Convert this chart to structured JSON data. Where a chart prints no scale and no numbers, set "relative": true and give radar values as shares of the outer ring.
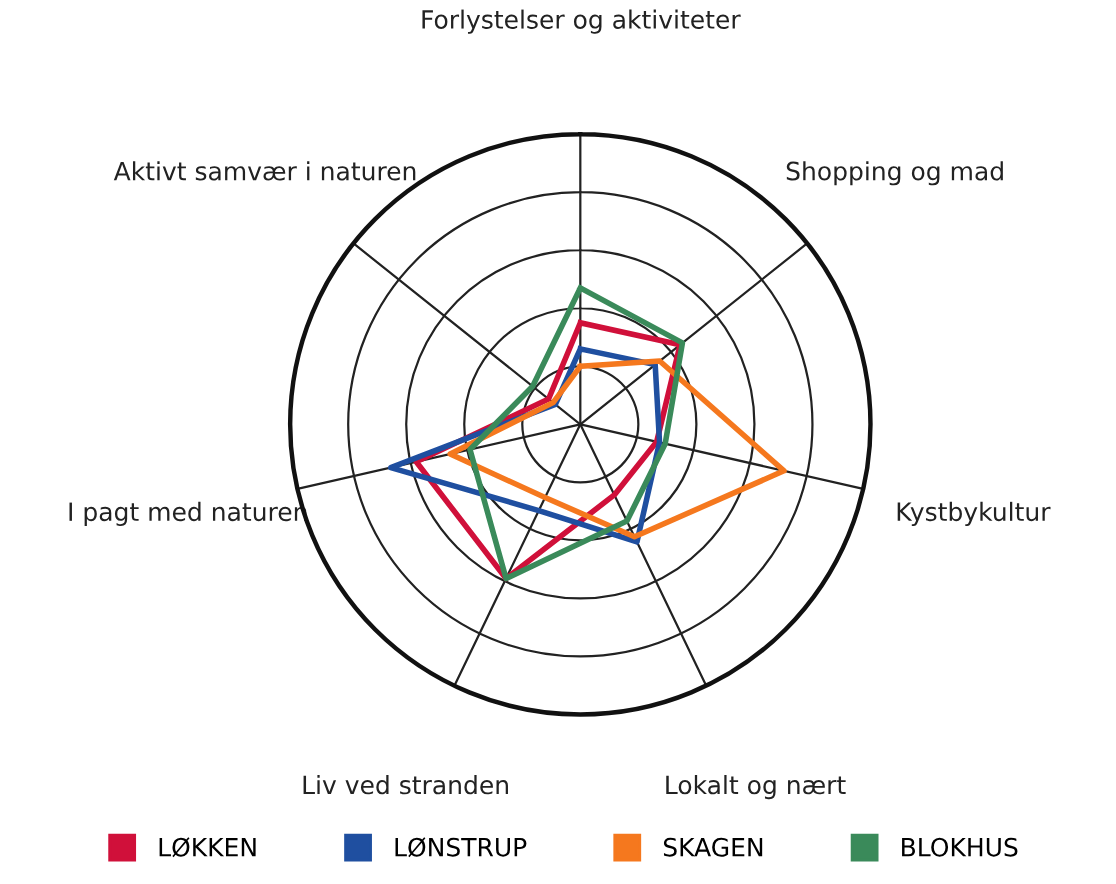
{
  "chart_data": {
    "type": "radar",
    "relative": true,
    "categories": [
      "Forlystelser og aktiviteter",
      "Shopping og mad",
      "Kystbykultur",
      "Lokalt og nært",
      "Liv ved stranden",
      "I pagt med naturen",
      "Aktivt samvær i naturen"
    ],
    "series": [
      {
        "name": "LØKKEN",
        "color": "#d0103a",
        "values": [
          0.35,
          0.44,
          0.27,
          0.27,
          0.59,
          0.58,
          0.14
        ]
      },
      {
        "name": "LØNSTRUP",
        "color": "#1f4fa0",
        "values": [
          0.26,
          0.33,
          0.28,
          0.45,
          0.33,
          0.67,
          0.11
        ]
      },
      {
        "name": "SKAGEN",
        "color": "#f5781e",
        "values": [
          0.2,
          0.35,
          0.72,
          0.43,
          0.28,
          0.46,
          0.12
        ]
      },
      {
        "name": "BLOKHUS",
        "color": "#3a8a5a",
        "values": [
          0.47,
          0.45,
          0.3,
          0.37,
          0.59,
          0.39,
          0.21
        ]
      }
    ],
    "grid": true,
    "legend": "bottom",
    "marker": "none",
    "line_style": "solid"
  }
}
